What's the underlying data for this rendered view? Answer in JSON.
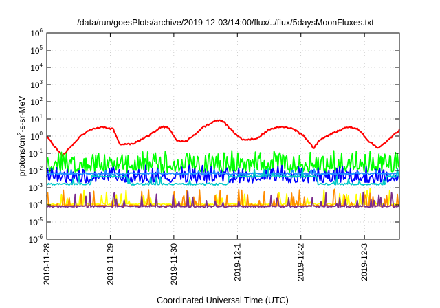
{
  "chart_data": {
    "type": "line",
    "title": "/data/run/goesPlots/archive/2019-12-03/14:00/flux/../flux/5daysMoonFluxes.txt",
    "xlabel": "Coordinated Universal Time (UTC)",
    "ylabel_base": "protons/cm",
    "ylabel_sup": "2",
    "ylabel_rest": "-s-sr-MeV",
    "y_scale": "log",
    "ylim": [
      1e-06,
      1000000.0
    ],
    "y_ticks": [
      {
        "exp": "-6"
      },
      {
        "exp": "-5"
      },
      {
        "exp": "-4"
      },
      {
        "exp": "-3"
      },
      {
        "exp": "-2"
      },
      {
        "exp": "-1"
      },
      {
        "exp": "0"
      },
      {
        "exp": "1"
      },
      {
        "exp": "2"
      },
      {
        "exp": "3"
      },
      {
        "exp": "4"
      },
      {
        "exp": "5"
      },
      {
        "exp": "6"
      }
    ],
    "y_tick_base": "10",
    "xlim_days": [
      0,
      5.55
    ],
    "x_ticks": [
      {
        "label": "2019-11-28",
        "day": 0
      },
      {
        "label": "2019-11-29",
        "day": 1
      },
      {
        "label": "2019-11-30",
        "day": 2
      },
      {
        "label": "2019-12-1",
        "day": 3
      },
      {
        "label": "2019-12-2",
        "day": 4
      },
      {
        "label": "2019-12-3",
        "day": 5
      }
    ],
    "grid": true,
    "legend": "none",
    "series": [
      {
        "color": "#ff0000",
        "kind": "smooth",
        "anchors": [
          [
            0,
            1.0
          ],
          [
            0.08,
            0.4
          ],
          [
            0.25,
            0.07
          ],
          [
            0.5,
            0.8
          ],
          [
            0.7,
            2.5
          ],
          [
            0.9,
            3.5
          ],
          [
            1.05,
            2.5
          ],
          [
            1.15,
            0.35
          ],
          [
            1.35,
            0.35
          ],
          [
            1.6,
            1.0
          ],
          [
            1.8,
            3.5
          ],
          [
            1.92,
            3.0
          ],
          [
            2.05,
            0.5
          ],
          [
            2.2,
            0.5
          ],
          [
            2.45,
            3.0
          ],
          [
            2.68,
            9.0
          ],
          [
            2.78,
            7.0
          ],
          [
            3.0,
            1.0
          ],
          [
            3.1,
            0.6
          ],
          [
            3.3,
            0.7
          ],
          [
            3.5,
            2.5
          ],
          [
            3.7,
            3.5
          ],
          [
            3.85,
            3.0
          ],
          [
            4.05,
            1.0
          ],
          [
            4.2,
            0.2
          ],
          [
            4.3,
            0.6
          ],
          [
            4.5,
            1.5
          ],
          [
            4.75,
            3.5
          ],
          [
            4.9,
            2.5
          ],
          [
            5.05,
            0.6
          ],
          [
            5.2,
            0.2
          ],
          [
            5.35,
            0.5
          ],
          [
            5.55,
            2.3
          ]
        ],
        "noise": 0.05,
        "spikes": 0
      },
      {
        "color": "#00ff00",
        "kind": "noisy",
        "base": 0.012,
        "noise": 0.18,
        "spikes": 0.6,
        "spike_amp": 1.0
      },
      {
        "color": "#0000ff",
        "kind": "noisy",
        "base": 0.0028,
        "noise": 0.17,
        "spikes": 0.55,
        "spike_amp": 0.75
      },
      {
        "color": "#1e90ff",
        "kind": "noisy",
        "base": 0.0065,
        "noise": 0.05,
        "spikes": 0.08,
        "spike_amp": 0.3
      },
      {
        "color": "#00c8c8",
        "kind": "stepped",
        "base": 0.0016,
        "noise": 0.05,
        "spikes": 0.06,
        "spike_amp": 0.5
      },
      {
        "color": "#ffff00",
        "kind": "spiky",
        "base": 0.00011,
        "noise": 0.04,
        "spikes": 0.1,
        "spike_amp": 0.9
      },
      {
        "color": "#ff8c00",
        "kind": "spiky",
        "base": 9e-05,
        "noise": 0.04,
        "spikes": 0.12,
        "spike_amp": 0.95
      },
      {
        "color": "#7b2d8e",
        "kind": "spiky",
        "base": 8e-05,
        "noise": 0.04,
        "spikes": 0.12,
        "spike_amp": 0.9
      }
    ]
  }
}
